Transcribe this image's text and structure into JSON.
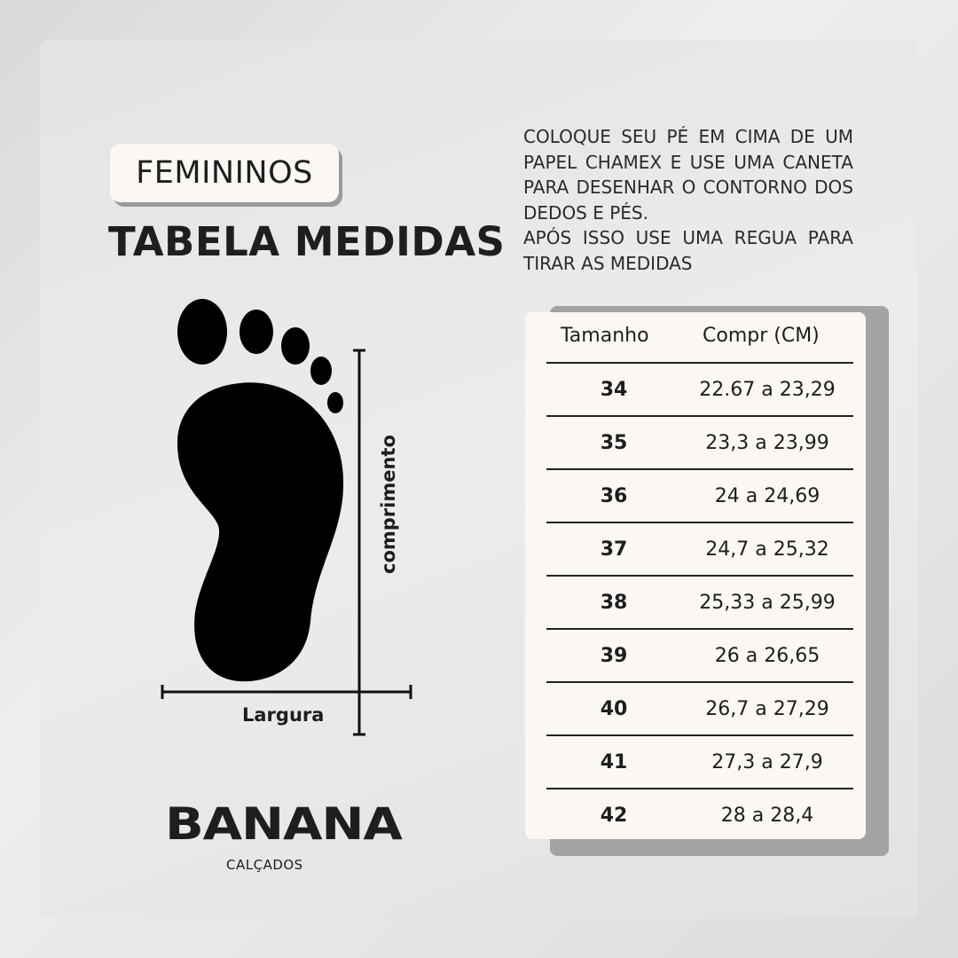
{
  "badge": "FEMININOS",
  "title": "TABELA MEDIDAS",
  "instructions": [
    "COLOQUE SEU PÉ EM CIMA DE UM PAPEL CHAMEX E USE UMA CANETA PARA DESENHAR O CONTORNO DOS DEDOS E PÉS.",
    "APÓS ISSO USE UMA REGUA PARA TIRAR AS MEDIDAS"
  ],
  "diagram": {
    "length_label": "comprimento",
    "width_label": "Largura"
  },
  "table": {
    "headers": [
      "Tamanho",
      "Compr (CM)"
    ],
    "rows": [
      {
        "size": "34",
        "length": "22.67 a 23,29"
      },
      {
        "size": "35",
        "length": "23,3 a 23,99"
      },
      {
        "size": "36",
        "length": "24 a 24,69"
      },
      {
        "size": "37",
        "length": "24,7 a 25,32"
      },
      {
        "size": "38",
        "length": "25,33 a 25,99"
      },
      {
        "size": "39",
        "length": "26 a 26,65"
      },
      {
        "size": "40",
        "length": "26,7 a 27,29"
      },
      {
        "size": "41",
        "length": "27,3 a 27,9"
      },
      {
        "size": "42",
        "length": "28 a 28,4"
      }
    ]
  },
  "brand": {
    "name": "BANANA",
    "sub": "CALÇADOS"
  }
}
